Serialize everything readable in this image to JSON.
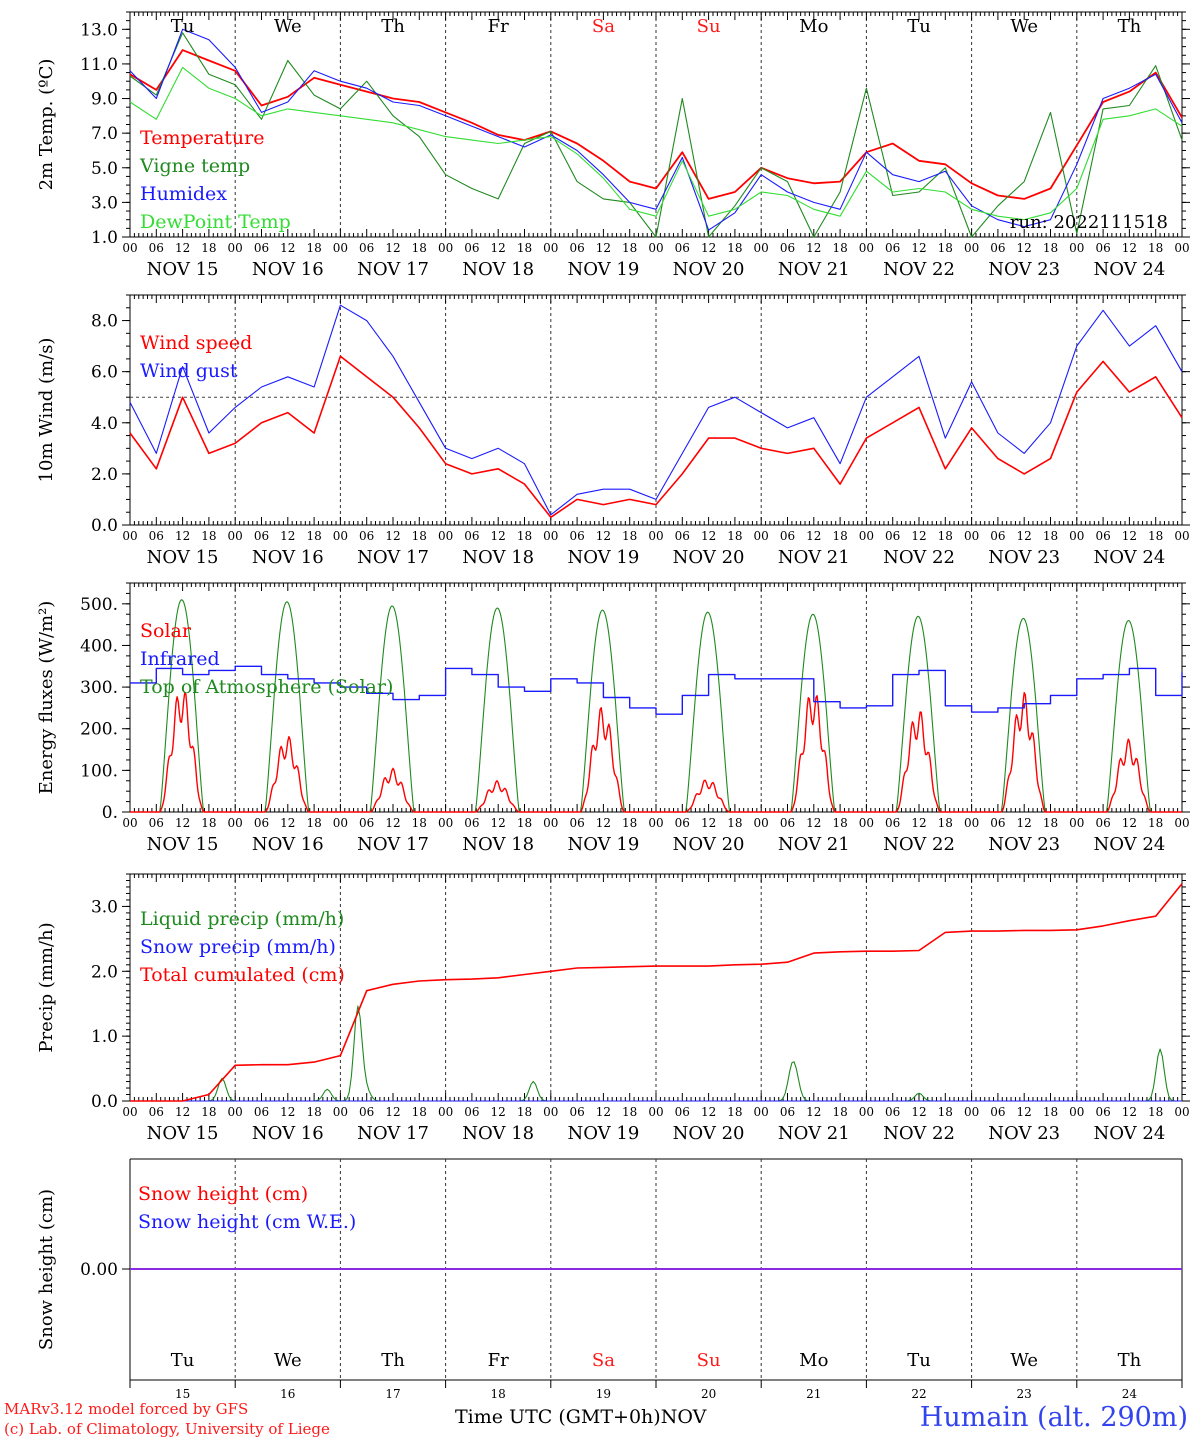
{
  "colors": {
    "red": "#ff0000",
    "green": "#1f8a1f",
    "blue": "#1a1aff",
    "lightgreen": "#33dd33",
    "purple": "#8a2be2",
    "axis": "#000000",
    "weekend": "#ff1a1a"
  },
  "time_axis": {
    "hour_labels": [
      "00",
      "06",
      "12",
      "18"
    ],
    "final_hour_label": "00",
    "date_labels": [
      "NOV 15",
      "NOV 16",
      "NOV 17",
      "NOV 18",
      "NOV 19",
      "NOV 20",
      "NOV 21",
      "NOV 22",
      "NOV 23",
      "NOV 24"
    ],
    "weekdays": [
      "Tu",
      "We",
      "Th",
      "Fr",
      "Sa",
      "Su",
      "Mo",
      "Tu",
      "We",
      "Th"
    ],
    "weekend_index": [
      4,
      5
    ],
    "bottom_day_numbers": [
      "15",
      "16",
      "17",
      "18",
      "19",
      "20",
      "21",
      "22",
      "23",
      "24"
    ],
    "x_range_hours": [
      0,
      240
    ]
  },
  "chart_data": [
    {
      "type": "line",
      "ylabel": "2m Temp. (ºC)",
      "ylim": [
        1,
        14
      ],
      "yticks": [
        "1.0",
        "3.0",
        "5.0",
        "7.0",
        "9.0",
        "11.0",
        "13.0"
      ],
      "run_label": "run: 2022111518",
      "x_hours": [
        0,
        6,
        12,
        18,
        24,
        30,
        36,
        42,
        48,
        54,
        60,
        66,
        72,
        78,
        84,
        90,
        96,
        102,
        108,
        114,
        120,
        126,
        132,
        138,
        144,
        150,
        156,
        162,
        168,
        174,
        180,
        186,
        192,
        198,
        204,
        210,
        216,
        222,
        228,
        234,
        240
      ],
      "series": [
        {
          "name": "Temperature",
          "color": "red",
          "values": [
            10.4,
            9.5,
            11.8,
            11.2,
            10.6,
            8.6,
            9.1,
            10.2,
            9.8,
            9.4,
            9.0,
            8.8,
            8.2,
            7.6,
            6.9,
            6.6,
            7.1,
            6.4,
            5.4,
            4.2,
            3.8,
            5.9,
            3.2,
            3.6,
            5.0,
            4.4,
            4.1,
            4.2,
            5.9,
            6.4,
            5.4,
            5.2,
            4.1,
            3.4,
            3.2,
            3.8,
            6.3,
            8.8,
            9.4,
            10.5,
            7.9
          ]
        },
        {
          "name": "Vigne temp",
          "color": "green",
          "values": [
            10.3,
            9.2,
            12.8,
            10.4,
            9.8,
            7.8,
            11.2,
            9.2,
            8.4,
            10.0,
            8.0,
            6.8,
            4.6,
            3.8,
            3.2,
            6.4,
            7.1,
            4.2,
            3.2,
            3.0,
            1.0,
            9.0,
            1.0,
            2.8,
            5.0,
            4.2,
            1.0,
            3.6,
            9.6,
            3.4,
            3.6,
            5.0,
            1.0,
            2.8,
            4.2,
            8.2,
            1.2,
            8.4,
            8.6,
            10.9,
            6.6
          ]
        },
        {
          "name": "Humidex",
          "color": "blue",
          "values": [
            10.6,
            9.0,
            13.0,
            12.4,
            10.8,
            8.2,
            8.8,
            10.6,
            10.0,
            9.6,
            8.8,
            8.6,
            8.0,
            7.4,
            6.8,
            6.2,
            6.9,
            6.0,
            4.6,
            3.0,
            2.6,
            5.6,
            1.4,
            2.4,
            4.6,
            3.6,
            3.0,
            2.6,
            5.9,
            4.6,
            4.2,
            4.8,
            2.8,
            2.0,
            1.6,
            2.0,
            5.2,
            9.0,
            9.6,
            10.4,
            7.6
          ]
        },
        {
          "name": "DewPoint Temp",
          "color": "lightgreen",
          "values": [
            8.8,
            7.8,
            10.8,
            9.6,
            9.0,
            8.0,
            8.4,
            8.2,
            8.0,
            7.8,
            7.6,
            7.2,
            6.8,
            6.6,
            6.4,
            6.6,
            6.8,
            5.8,
            4.4,
            2.6,
            2.2,
            5.4,
            2.2,
            2.6,
            3.6,
            3.4,
            2.6,
            2.2,
            4.8,
            3.6,
            3.8,
            3.6,
            2.6,
            2.2,
            2.0,
            2.4,
            3.8,
            7.8,
            8.0,
            8.4,
            7.4
          ]
        }
      ]
    },
    {
      "type": "line",
      "ylabel": "10m Wind (m/s)",
      "ylim": [
        0,
        9
      ],
      "yticks": [
        "0.0",
        "2.0",
        "4.0",
        "6.0",
        "8.0"
      ],
      "reference_line": 5,
      "x_hours": [
        0,
        6,
        12,
        18,
        24,
        30,
        36,
        42,
        48,
        54,
        60,
        66,
        72,
        78,
        84,
        90,
        96,
        102,
        108,
        114,
        120,
        126,
        132,
        138,
        144,
        150,
        156,
        162,
        168,
        174,
        180,
        186,
        192,
        198,
        204,
        210,
        216,
        222,
        228,
        234,
        240
      ],
      "series": [
        {
          "name": "Wind speed",
          "color": "red",
          "values": [
            3.6,
            2.2,
            5.0,
            2.8,
            3.2,
            4.0,
            4.4,
            3.6,
            6.6,
            5.8,
            5.0,
            3.8,
            2.4,
            2.0,
            2.2,
            1.6,
            0.3,
            1.0,
            0.8,
            1.0,
            0.8,
            2.0,
            3.4,
            3.4,
            3.0,
            2.8,
            3.0,
            1.6,
            3.4,
            4.0,
            4.6,
            2.2,
            3.8,
            2.6,
            2.0,
            2.6,
            5.2,
            6.4,
            5.2,
            5.8,
            4.2
          ]
        },
        {
          "name": "Wind gust",
          "color": "blue",
          "values": [
            4.8,
            2.8,
            6.2,
            3.6,
            4.6,
            5.4,
            5.8,
            5.4,
            8.6,
            8.0,
            6.6,
            4.8,
            3.0,
            2.6,
            3.0,
            2.4,
            0.4,
            1.2,
            1.4,
            1.4,
            1.0,
            2.8,
            4.6,
            5.0,
            4.4,
            3.8,
            4.2,
            2.4,
            5.0,
            5.8,
            6.6,
            3.4,
            5.6,
            3.6,
            2.8,
            4.0,
            7.0,
            8.4,
            7.0,
            7.8,
            6.0
          ]
        }
      ]
    },
    {
      "type": "line",
      "ylabel": "Energy fluxes (W/m²)",
      "ylim": [
        0,
        550
      ],
      "yticks": [
        "0.",
        "100.",
        "200.",
        "300.",
        "400.",
        "500."
      ],
      "series": [
        {
          "name": "Solar",
          "color": "red",
          "daily_peaks": [
            305,
            185,
            105,
            75,
            255,
            80,
            300,
            250,
            290,
            175
          ]
        },
        {
          "name": "Infrared",
          "color": "blue",
          "values": [
            310,
            345,
            330,
            340,
            350,
            330,
            320,
            310,
            300,
            285,
            270,
            280,
            345,
            330,
            300,
            290,
            320,
            310,
            275,
            250,
            235,
            280,
            330,
            320,
            320,
            320,
            265,
            250,
            255,
            330,
            340,
            255,
            240,
            250,
            260,
            280,
            320,
            330,
            345,
            280,
            335
          ]
        },
        {
          "name": "Top of Atmosphere (Solar)",
          "color": "green",
          "daily_peaks": [
            510,
            505,
            495,
            490,
            485,
            480,
            475,
            470,
            465,
            460
          ]
        }
      ]
    },
    {
      "type": "line",
      "ylabel": "Precip (mm/h)",
      "ylim": [
        0,
        3.5
      ],
      "yticks": [
        "0.0",
        "1.0",
        "2.0",
        "3.0"
      ],
      "series": [
        {
          "name": "Liquid precip (mm/h)",
          "color": "green",
          "spikes": [
            [
              21,
              0.35
            ],
            [
              45,
              0.18
            ],
            [
              52,
              1.45
            ],
            [
              54,
              0.15
            ],
            [
              92,
              0.3
            ],
            [
              151,
              0.45
            ],
            [
              152,
              0.25
            ],
            [
              180,
              0.12
            ],
            [
              235,
              0.8
            ]
          ]
        },
        {
          "name": "Snow precip (mm/h)",
          "color": "blue",
          "values": []
        },
        {
          "name": "Total cumulated (cm)",
          "color": "red",
          "values": [
            0,
            0,
            0,
            0.1,
            0.55,
            0.56,
            0.56,
            0.6,
            0.7,
            1.7,
            1.8,
            1.85,
            1.87,
            1.88,
            1.9,
            1.95,
            2.0,
            2.05,
            2.06,
            2.07,
            2.08,
            2.08,
            2.08,
            2.1,
            2.11,
            2.14,
            2.28,
            2.3,
            2.31,
            2.31,
            2.32,
            2.6,
            2.62,
            2.62,
            2.63,
            2.63,
            2.64,
            2.7,
            2.78,
            2.85,
            3.35
          ]
        },
        {
          "name": "x_hours",
          "values": [
            0,
            6,
            12,
            18,
            24,
            30,
            36,
            42,
            48,
            54,
            60,
            66,
            72,
            78,
            84,
            90,
            96,
            102,
            108,
            114,
            120,
            126,
            132,
            138,
            144,
            150,
            156,
            162,
            168,
            174,
            180,
            186,
            192,
            198,
            204,
            210,
            216,
            222,
            228,
            234,
            240
          ]
        }
      ]
    },
    {
      "type": "line",
      "ylabel": "Snow height (cm)",
      "yticks": [
        "0.00"
      ],
      "series": [
        {
          "name": "Snow height (cm)",
          "color": "red",
          "values": [
            0,
            0
          ]
        },
        {
          "name": "Snow height (cm W.E.)",
          "color": "blue",
          "values": [
            0,
            0
          ]
        }
      ]
    }
  ],
  "footer": {
    "model_line": "MARv3.12 model forced by GFS",
    "copyright_line": "(c) Lab. of Climatology, University of Liege",
    "axis_title": "Time UTC (GMT+0h)",
    "month": "NOV",
    "station": "Humain (alt. 290m)"
  }
}
